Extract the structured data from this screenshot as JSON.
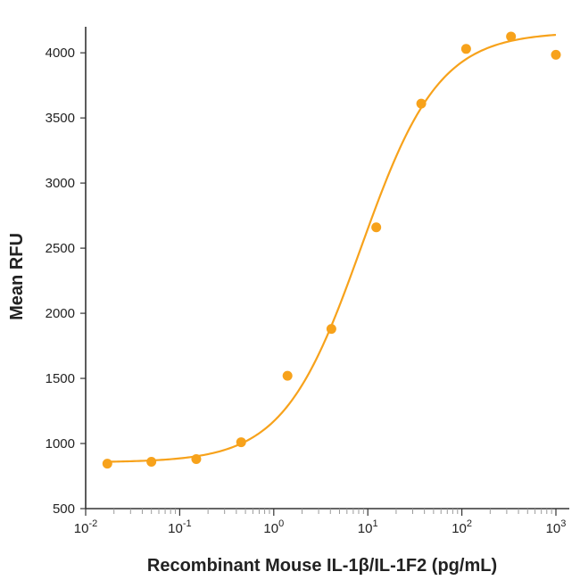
{
  "chart_data": {
    "type": "scatter",
    "title": "",
    "xlabel": "Recombinant Mouse IL-1β/IL-1F2 (pg/mL)",
    "ylabel": "Mean RFU",
    "xscale": "log",
    "xlim": [
      0.01,
      1000
    ],
    "ylim": [
      500,
      4200
    ],
    "x_ticks": [
      {
        "value": 0.01,
        "base": "10",
        "exp": "-2"
      },
      {
        "value": 0.1,
        "base": "10",
        "exp": "-1"
      },
      {
        "value": 1,
        "base": "10",
        "exp": "0"
      },
      {
        "value": 10,
        "base": "10",
        "exp": "1"
      },
      {
        "value": 100,
        "base": "10",
        "exp": "2"
      },
      {
        "value": 1000,
        "base": "10",
        "exp": "3"
      }
    ],
    "y_ticks": [
      "500",
      "1000",
      "1500",
      "2000",
      "2500",
      "3000",
      "3500",
      "4000"
    ],
    "grid": false,
    "legend": "none",
    "color": "#f7a21b",
    "series": [
      {
        "points": [
          {
            "x": 0.017,
            "y": 845
          },
          {
            "x": 0.05,
            "y": 860
          },
          {
            "x": 0.15,
            "y": 880
          },
          {
            "x": 0.45,
            "y": 1010
          },
          {
            "x": 1.4,
            "y": 1520
          },
          {
            "x": 4.1,
            "y": 1880
          },
          {
            "x": 12.3,
            "y": 2660
          },
          {
            "x": 37,
            "y": 3610
          },
          {
            "x": 111,
            "y": 4030
          },
          {
            "x": 333,
            "y": 4125
          },
          {
            "x": 1000,
            "y": 3985
          }
        ]
      }
    ],
    "fit_curve": {
      "model": "4PL",
      "bottom": 855,
      "top": 4160,
      "ec50": 8.5,
      "hill": 1.05,
      "x_range": [
        0.017,
        1000
      ]
    }
  }
}
